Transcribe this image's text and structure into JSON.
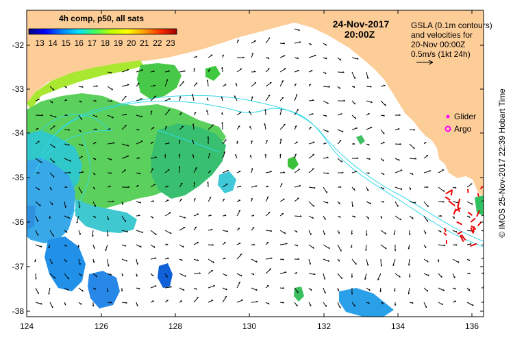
{
  "map": {
    "colorbar": {
      "title": "4h comp, p50, all sats",
      "ticks": [
        "13",
        "14",
        "15",
        "16",
        "17",
        "18",
        "19",
        "20",
        "21",
        "22",
        "23"
      ],
      "stops": [
        "#000080",
        "#0000ff",
        "#0080ff",
        "#00e0ff",
        "#40ff60",
        "#c0ff00",
        "#ffff00",
        "#ffa000",
        "#ff3000",
        "#a00000"
      ]
    },
    "date": "24-Nov-2017",
    "time": "20:00Z",
    "legend_text": [
      "GSLA (0.1m contours)",
      "and velocities for",
      "20-Nov 00:00Z",
      "0.5m/s (1kt 24h)"
    ],
    "symbols": [
      {
        "label": "Glider",
        "color": "#ff00ff"
      },
      {
        "label": "Argo",
        "color": "#ff00ff"
      }
    ],
    "credit": "© IMOS 25-Nov-2017 22:39 Hobart Time",
    "x_ticks": [
      "124",
      "126",
      "128",
      "130",
      "132",
      "134",
      "136"
    ],
    "y_ticks": [
      "-32",
      "-33",
      "-34",
      "-35",
      "-36",
      "-37",
      "-38"
    ],
    "colors": {
      "land": "#fdcd98",
      "contour": "#30d8ea",
      "vector": "#000000",
      "float_track": "#ee0000",
      "background": "#ffffff"
    }
  }
}
